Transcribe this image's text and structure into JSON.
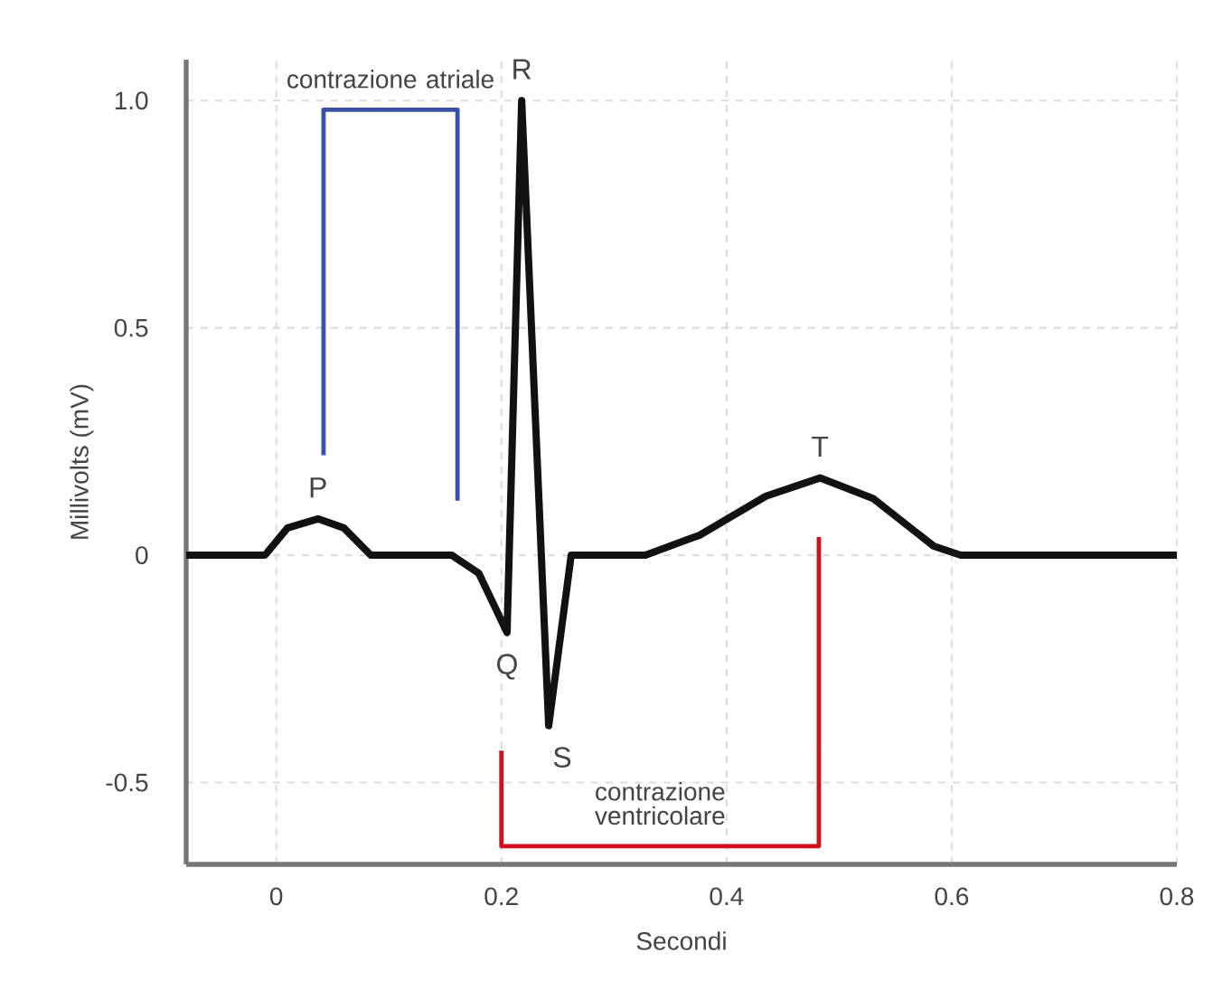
{
  "chart_data": {
    "type": "line",
    "xlabel": "Secondi",
    "ylabel": "Millivolts (mV)",
    "xlim": [
      -0.08,
      0.8
    ],
    "ylim": [
      -0.68,
      1.09
    ],
    "xticks": [
      0,
      0.2,
      0.4,
      0.6,
      0.8
    ],
    "yticks": [
      -0.5,
      0,
      0.5,
      {
        "value": 1,
        "label": "1.0"
      }
    ],
    "grid": true,
    "line_style": "solid",
    "marker": "none",
    "series": [
      {
        "color": "#111111",
        "x": [
          -0.08,
          -0.01,
          0.01,
          0.037,
          0.06,
          0.084,
          0.156,
          0.18,
          0.205,
          0.218,
          0.242,
          0.262,
          0.328,
          0.376,
          0.435,
          0.483,
          0.53,
          0.584,
          0.608,
          0.8
        ],
        "values": [
          0,
          0,
          0.06,
          0.08,
          0.06,
          0,
          0,
          -0.04,
          -0.17,
          1.0,
          -0.375,
          0,
          0,
          0.044,
          0.13,
          0.17,
          0.125,
          0.02,
          0,
          0
        ]
      },
      {
        "color": "#3a4fa8",
        "x": [
          0.042,
          0.042,
          0.161,
          0.161
        ],
        "values": [
          0.22,
          0.98,
          0.98,
          0.12
        ]
      },
      {
        "color": "#d0101c",
        "x": [
          0.2,
          0.2,
          0.482,
          0.482
        ],
        "values": [
          -0.43,
          -0.64,
          -0.64,
          0.04
        ]
      }
    ],
    "annotations": [
      {
        "text": "P",
        "x": 0.037,
        "y": 0.08
      },
      {
        "text": "Q",
        "x": 0.205,
        "y": -0.17
      },
      {
        "text": "R",
        "x": 0.218,
        "y": 1.0
      },
      {
        "text": "S",
        "x": 0.242,
        "y": -0.375
      },
      {
        "text": "T",
        "x": 0.483,
        "y": 0.17
      },
      {
        "text": "contrazione atriale",
        "x": 0.1015,
        "y": 0.98
      },
      {
        "text": "contrazione ventricolare",
        "x": 0.341,
        "y": -0.64
      }
    ]
  }
}
